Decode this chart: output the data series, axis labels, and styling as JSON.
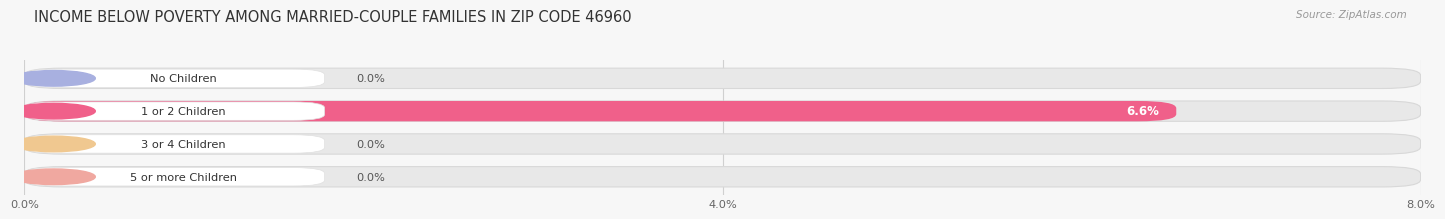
{
  "title": "INCOME BELOW POVERTY AMONG MARRIED-COUPLE FAMILIES IN ZIP CODE 46960",
  "source": "Source: ZipAtlas.com",
  "categories": [
    "No Children",
    "1 or 2 Children",
    "3 or 4 Children",
    "5 or more Children"
  ],
  "values": [
    0.0,
    6.6,
    0.0,
    0.0
  ],
  "bar_colors": [
    "#a8b0e0",
    "#f0608a",
    "#f0c890",
    "#f0a8a0"
  ],
  "xlim": [
    0,
    8.0
  ],
  "xtick_labels": [
    "0.0%",
    "4.0%",
    "8.0%"
  ],
  "xtick_vals": [
    0.0,
    4.0,
    8.0
  ],
  "title_fontsize": 10.5,
  "bar_height": 0.62,
  "background_color": "#f7f7f7",
  "track_color": "#e8e8e8",
  "label_pill_color": "#ffffff",
  "value_label_color": "#555555",
  "value_label_inside_color": "#ffffff",
  "grid_color": "#d0d0d0"
}
